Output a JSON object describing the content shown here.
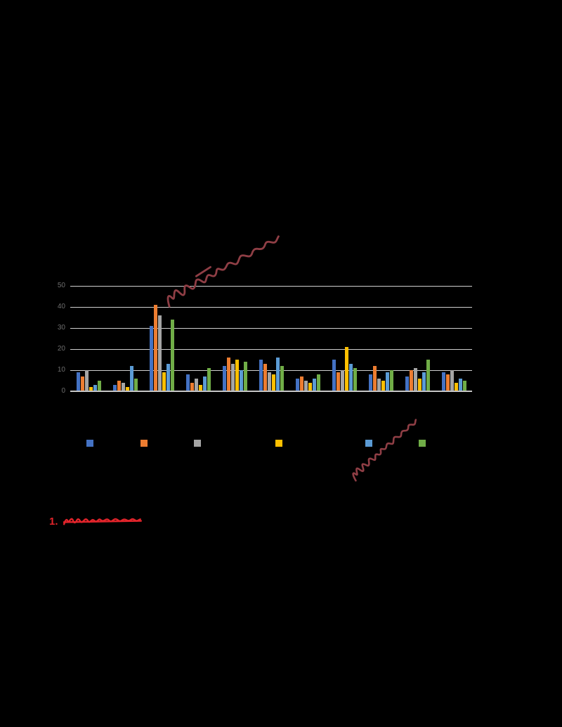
{
  "page": {
    "background": "#000000"
  },
  "chart_data": {
    "type": "bar",
    "title": "",
    "xlabel": "",
    "ylabel": "",
    "grid": true,
    "legend_position": "bottom",
    "ylim": [
      0,
      50
    ],
    "yticks": [
      0,
      10,
      20,
      30,
      40,
      50
    ],
    "categories": [
      "",
      "",
      "",
      "",
      "",
      "",
      "",
      "",
      "",
      "",
      ""
    ],
    "series": [
      {
        "name": "",
        "color": "#4472C4",
        "values": [
          9,
          3,
          31,
          8,
          12,
          15,
          6,
          15,
          8,
          7,
          9
        ]
      },
      {
        "name": "",
        "color": "#ED7D31",
        "values": [
          7,
          5,
          41,
          4,
          16,
          13,
          7,
          9,
          12,
          10,
          8
        ]
      },
      {
        "name": "",
        "color": "#A5A5A5",
        "values": [
          10,
          4,
          36,
          6,
          13,
          9,
          5,
          10,
          6,
          11,
          10
        ]
      },
      {
        "name": "",
        "color": "#FFC000",
        "values": [
          2,
          2,
          9,
          3,
          15,
          8,
          4,
          21,
          5,
          6,
          4
        ]
      },
      {
        "name": "",
        "color": "#5B9BD5",
        "values": [
          3,
          12,
          13,
          7,
          10,
          16,
          6,
          13,
          9,
          9,
          6
        ]
      },
      {
        "name": "",
        "color": "#70AD47",
        "values": [
          5,
          6,
          34,
          11,
          14,
          12,
          8,
          11,
          10,
          15,
          5
        ]
      }
    ]
  },
  "annotations": {
    "diagonal_note_top": {
      "type": "handwritten-scribble",
      "color": "#8F3E45"
    },
    "diagonal_note_bottom": {
      "type": "handwritten-scribble",
      "color": "#8F3E45"
    },
    "numbered_note": {
      "number": "1.",
      "text": "",
      "color": "#E3242B"
    }
  }
}
